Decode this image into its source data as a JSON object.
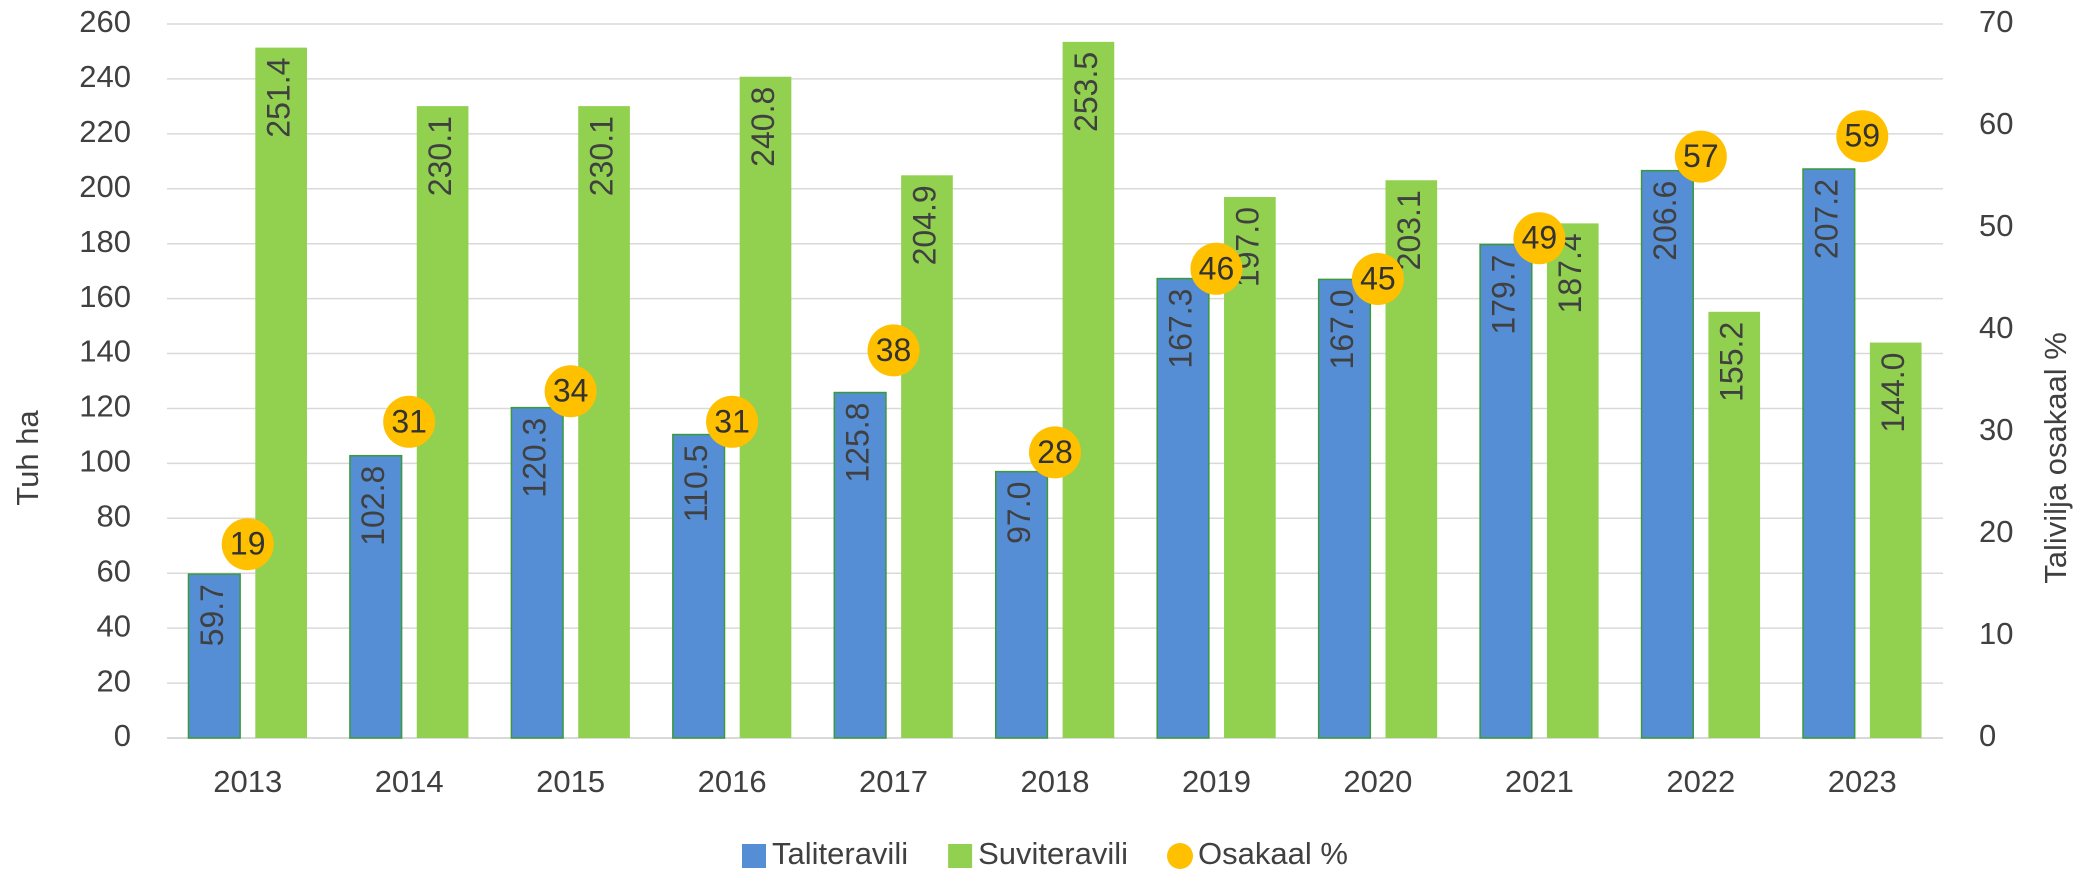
{
  "chart_data": {
    "type": "bar",
    "categories": [
      "2013",
      "2014",
      "2015",
      "2016",
      "2017",
      "2018",
      "2019",
      "2020",
      "2021",
      "2022",
      "2023"
    ],
    "series": [
      {
        "name": "Taliteravili",
        "color": "#558ed5",
        "values": [
          59.7,
          102.8,
          120.3,
          110.5,
          125.8,
          97.0,
          167.3,
          167.0,
          179.7,
          206.6,
          207.2
        ],
        "value_labels": [
          "59.7",
          "102.8",
          "120.3",
          "110.5",
          "125.8",
          "97.0",
          "167.3",
          "167.0",
          "179.7",
          "206.6",
          "207.2"
        ]
      },
      {
        "name": "Suviteravili",
        "color": "#92d050",
        "values": [
          251.4,
          230.1,
          230.1,
          240.8,
          204.9,
          253.5,
          197.0,
          203.1,
          187.4,
          155.2,
          144.0
        ],
        "value_labels": [
          "251.4",
          "230.1",
          "230.1",
          "240.8",
          "204.9",
          "253.5",
          "197.0",
          "203.1",
          "187.4",
          "155.2",
          "144.0"
        ]
      },
      {
        "name": "Osakaal %",
        "color": "#ffc000",
        "axis": "y2",
        "values": [
          19,
          31,
          34,
          31,
          38,
          28,
          46,
          45,
          49,
          57,
          59
        ]
      }
    ],
    "ylabel": "Tuh ha",
    "y2label": "Talivilja osakaal %",
    "ylim": [
      0,
      260
    ],
    "yticks": [
      0,
      20,
      40,
      60,
      80,
      100,
      120,
      140,
      160,
      180,
      200,
      220,
      240,
      260
    ],
    "y2lim": [
      0,
      70
    ],
    "y2ticks": [
      0,
      10,
      20,
      30,
      40,
      50,
      60,
      70
    ],
    "grid": true,
    "legend": "bottom"
  }
}
